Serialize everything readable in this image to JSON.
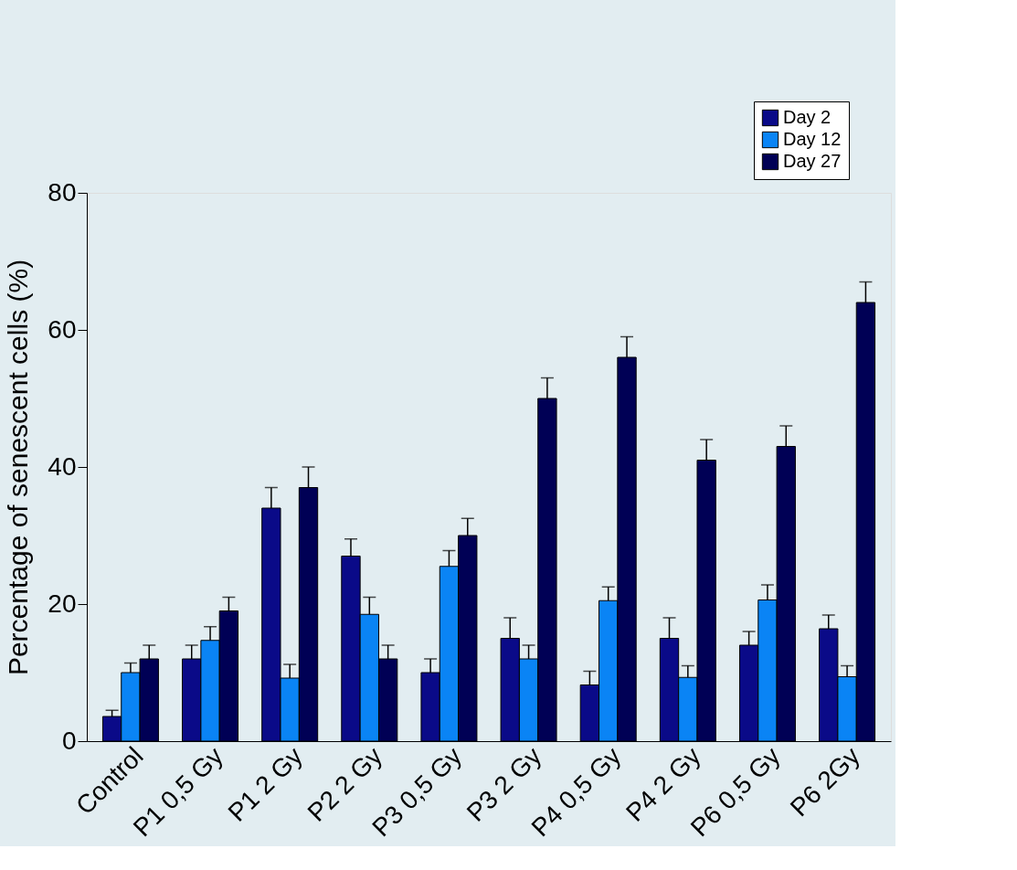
{
  "chart_data": {
    "type": "bar",
    "ylabel": "Percentage of senescent cells (%)",
    "categories": [
      "Control",
      "P1 0,5 Gy",
      "P1 2 Gy",
      "P2 2 Gy",
      "P3 0,5 Gy",
      "P3 2 Gy",
      "P4 0,5 Gy",
      "P4 2 Gy",
      "P6 0,5 Gy",
      "P6 2Gy"
    ],
    "series": [
      {
        "name": "Day 2",
        "color": "#0a0a88",
        "values": [
          3.6,
          12,
          34,
          27,
          10,
          15,
          8.2,
          15,
          14,
          16.4
        ],
        "errors": [
          [
            3.6,
            4.5
          ],
          [
            12,
            14
          ],
          [
            34,
            37
          ],
          [
            27,
            29.5
          ],
          [
            10,
            12
          ],
          [
            15,
            18
          ],
          [
            8.2,
            10.2
          ],
          [
            15,
            18
          ],
          [
            14,
            16
          ],
          [
            16.4,
            18.4
          ]
        ]
      },
      {
        "name": "Day 12",
        "color": "#0a84f5",
        "values": [
          10,
          14.7,
          9.2,
          18.5,
          25.5,
          12,
          20.5,
          9.3,
          20.6,
          9.4
        ],
        "errors": [
          [
            10,
            11.4
          ],
          [
            14.7,
            16.7
          ],
          [
            9.2,
            11.2
          ],
          [
            18.5,
            21
          ],
          [
            25.5,
            27.8
          ],
          [
            12,
            14
          ],
          [
            20.5,
            22.5
          ],
          [
            9.3,
            11
          ],
          [
            20.6,
            22.8
          ],
          [
            9.4,
            11
          ]
        ]
      },
      {
        "name": "Day 27",
        "color": "#000055",
        "values": [
          12,
          19,
          37,
          12,
          30,
          50,
          56,
          41,
          43,
          64
        ],
        "errors": [
          [
            12,
            14
          ],
          [
            19,
            21
          ],
          [
            37,
            40
          ],
          [
            12,
            14
          ],
          [
            30,
            32.5
          ],
          [
            50,
            53
          ],
          [
            56,
            59
          ],
          [
            41,
            44
          ],
          [
            43,
            46
          ],
          [
            64,
            67
          ]
        ]
      }
    ],
    "ylim": [
      0,
      80
    ],
    "yticks": [
      0,
      20,
      40,
      60,
      80
    ],
    "grid": false,
    "legend": "top right"
  }
}
